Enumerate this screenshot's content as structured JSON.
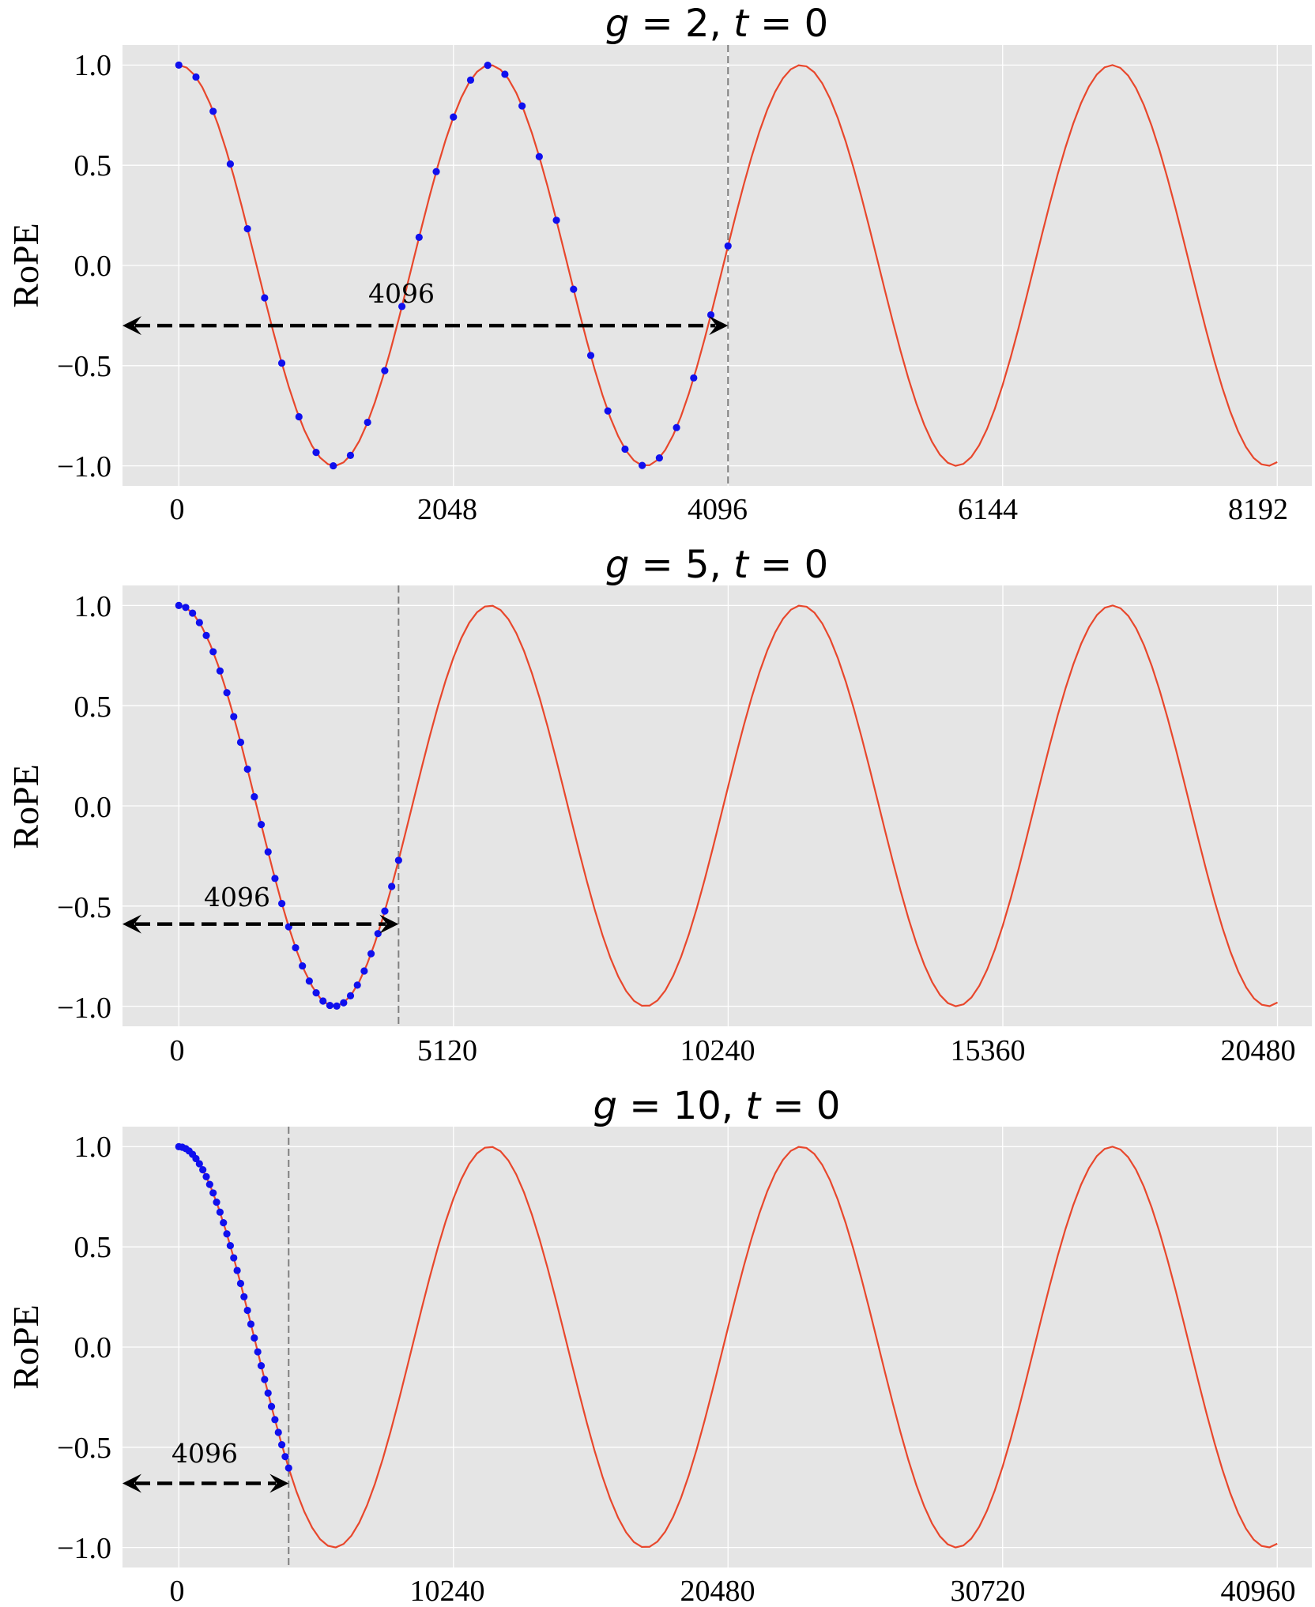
{
  "figure": {
    "charts": [
      {
        "title": {
          "g_symbol": "g",
          "g_value": "2",
          "t_symbol": "t",
          "t_value": "0"
        },
        "ylabel": "RoPE",
        "xticks": [
          "0",
          "2048",
          "4096",
          "6144",
          "8192"
        ],
        "yticks": [
          "1.0",
          "0.5",
          "0.0",
          "−0.5",
          "−1.0"
        ],
        "annotation": "4096"
      },
      {
        "title": {
          "g_symbol": "g",
          "g_value": "5",
          "t_symbol": "t",
          "t_value": "0"
        },
        "ylabel": "RoPE",
        "xticks": [
          "0",
          "5120",
          "10240",
          "15360",
          "20480"
        ],
        "yticks": [
          "1.0",
          "0.5",
          "0.0",
          "−0.5",
          "−1.0"
        ],
        "annotation": "4096"
      },
      {
        "title": {
          "g_symbol": "g",
          "g_value": "10",
          "t_symbol": "t",
          "t_value": "0"
        },
        "ylabel": "RoPE",
        "xticks": [
          "0",
          "10240",
          "20480",
          "30720",
          "40960"
        ],
        "yticks": [
          "1.0",
          "0.5",
          "0.0",
          "−0.5",
          "−1.0"
        ],
        "annotation": "4096"
      }
    ]
  },
  "chart_data": [
    {
      "type": "line",
      "title": "g = 2, t = 0",
      "xlabel": "",
      "ylabel": "RoPE",
      "xlim": [
        -420,
        8450
      ],
      "ylim": [
        -1.1,
        1.1
      ],
      "xticks": [
        0,
        2048,
        4096,
        6144,
        8192
      ],
      "yticks": [
        1.0,
        0.5,
        0.0,
        -0.5,
        -1.0
      ],
      "grid": true,
      "curve": {
        "function": "cos",
        "period": 2320,
        "x_range": [
          0,
          8192
        ]
      },
      "samples": {
        "x_start": 0,
        "x_end": 4096,
        "count": 32
      },
      "vline_x": 4096,
      "arrow": {
        "from_x": -420,
        "to_x": 4096,
        "y": -0.3,
        "label": "4096"
      },
      "colors": {
        "curve": "#e8472c",
        "samples": "#1010ee",
        "background": "#e5e5e5"
      }
    },
    {
      "type": "line",
      "title": "g = 5, t = 0",
      "xlabel": "",
      "ylabel": "RoPE",
      "xlim": [
        -1050,
        21120
      ],
      "ylim": [
        -1.1,
        1.1
      ],
      "xticks": [
        0,
        5120,
        10240,
        15360,
        20480
      ],
      "yticks": [
        1.0,
        0.5,
        0.0,
        -0.5,
        -1.0
      ],
      "grid": true,
      "curve": {
        "function": "cos",
        "period": 5800,
        "x_range": [
          0,
          20480
        ]
      },
      "samples": {
        "x_start": 0,
        "x_end": 4096,
        "count": 32
      },
      "vline_x": 4096,
      "arrow": {
        "from_x": -1050,
        "to_x": 4096,
        "y": -0.59,
        "label": "4096"
      },
      "colors": {
        "curve": "#e8472c",
        "samples": "#1010ee",
        "background": "#e5e5e5"
      }
    },
    {
      "type": "line",
      "title": "g = 10, t = 0",
      "xlabel": "",
      "ylabel": "RoPE",
      "xlim": [
        -2100,
        42250
      ],
      "ylim": [
        -1.1,
        1.1
      ],
      "xticks": [
        0,
        10240,
        20480,
        30720,
        40960
      ],
      "yticks": [
        1.0,
        0.5,
        0.0,
        -0.5,
        -1.0
      ],
      "grid": true,
      "curve": {
        "function": "cos",
        "period": 11600,
        "x_range": [
          0,
          40960
        ]
      },
      "samples": {
        "x_start": 0,
        "x_end": 4096,
        "count": 32
      },
      "vline_x": 4096,
      "arrow": {
        "from_x": -2100,
        "to_x": 4096,
        "y": -0.68,
        "label": "4096"
      },
      "colors": {
        "curve": "#e8472c",
        "samples": "#1010ee",
        "background": "#e5e5e5"
      }
    }
  ]
}
